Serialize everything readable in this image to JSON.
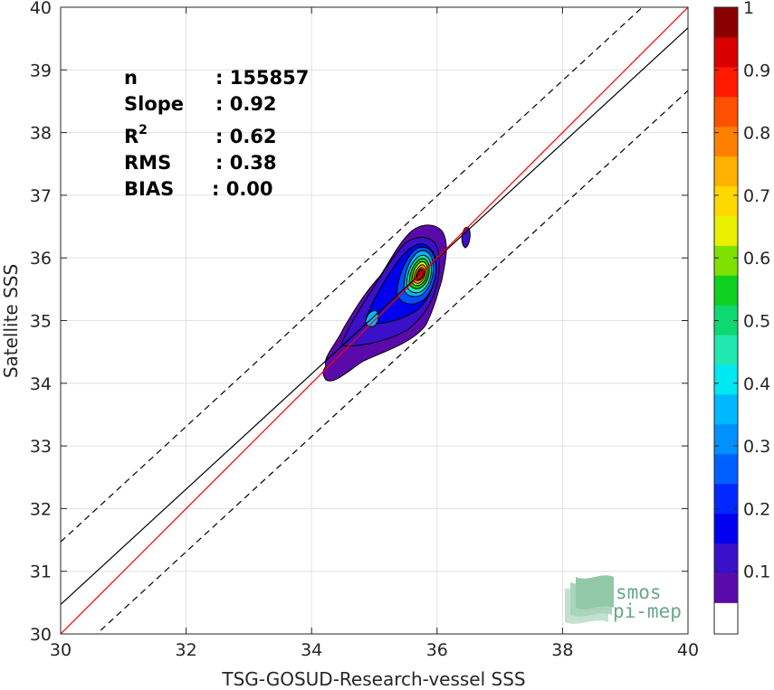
{
  "chart_data": {
    "type": "heatmap",
    "xlabel": "TSG-GOSUD-Research-vessel SSS",
    "ylabel": "Satellite SSS",
    "xlim": [
      30,
      40
    ],
    "ylim": [
      30,
      40
    ],
    "x_ticks": [
      "30",
      "32",
      "34",
      "36",
      "38",
      "40"
    ],
    "y_ticks": [
      "30",
      "31",
      "32",
      "33",
      "34",
      "35",
      "36",
      "37",
      "38",
      "39",
      "40"
    ],
    "grid": true,
    "stats": [
      {
        "label": "n",
        "value": ": 155857"
      },
      {
        "label": "Slope",
        "value": ": 0.92"
      },
      {
        "label": "R",
        "superscript": "2",
        "value": ": 0.62"
      },
      {
        "label": "RMS",
        "value": ": 0.38"
      },
      {
        "label": "BIAS",
        "value": ": 0.00"
      }
    ],
    "lines": {
      "identity": {
        "slope": 1.0,
        "intercept": 0.0,
        "color": "#ff0000"
      },
      "regression": {
        "slope": 0.92,
        "intercept": 2.87,
        "color": "#000000"
      },
      "upper_bound": {
        "slope": 0.92,
        "intercept": 3.87,
        "style": "dashed"
      },
      "lower_bound": {
        "slope": 0.92,
        "intercept": 1.87,
        "style": "dashed"
      }
    },
    "density_center": {
      "x": 35.75,
      "y": 35.75
    },
    "colorbar": {
      "min": 0.05,
      "max": 1.0,
      "tick_labels": [
        "0.1",
        "0.2",
        "0.3",
        "0.4",
        "0.5",
        "0.6",
        "0.7",
        "0.8",
        "0.9",
        "1"
      ],
      "colors": [
        "#5a0aab",
        "#3a10c8",
        "#0000f0",
        "#0028ff",
        "#0060ff",
        "#0090ff",
        "#00b8ff",
        "#00e8f0",
        "#20e8b0",
        "#10d870",
        "#10d020",
        "#80e000",
        "#e8f000",
        "#ffd800",
        "#ffb000",
        "#ff8000",
        "#ff5000",
        "#ff1a00",
        "#d80000",
        "#8a0000"
      ]
    }
  },
  "logo": {
    "line1": "smos",
    "line2": "pi-mep"
  }
}
